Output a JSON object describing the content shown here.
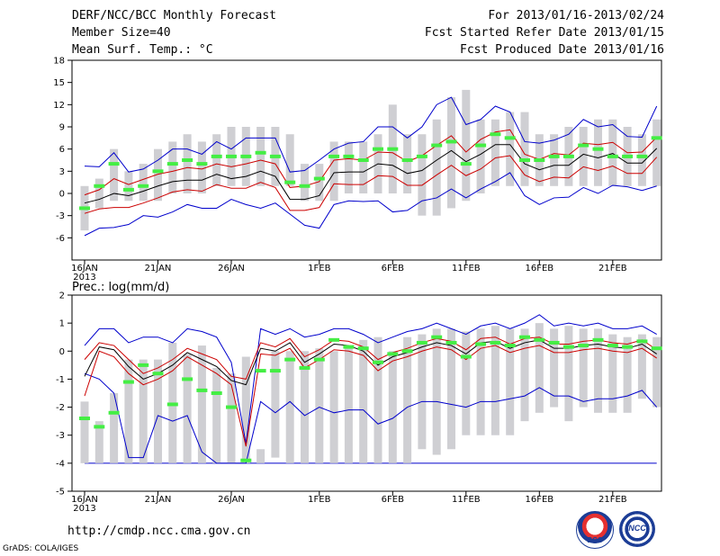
{
  "header": {
    "left": [
      "DERF/NCC/BCC Monthly Forecast",
      "Member Size=40",
      "Mean Surf. Temp.: °C"
    ],
    "right": [
      "For 2013/01/16-2013/02/24",
      "Fcst Started Refer Date 2013/01/15",
      "Fcst Produced Date 2013/01/16"
    ]
  },
  "footer": {
    "url": "http://cmdp.ncc.cma.gov.cn",
    "grads": "GrADS: COLA/IGES",
    "logo_left": "BCC",
    "logo_right": "NCC"
  },
  "colors": {
    "box": "#cfcfd3",
    "median": "#44ee44",
    "mean": "#000000",
    "std": "#cc0000",
    "extreme": "#0000cc"
  },
  "chart_data": [
    {
      "type": "box",
      "title": "Mean Surf. Temp.: °C",
      "ylim": [
        -9,
        18
      ],
      "yticks": [
        -6,
        -3,
        0,
        3,
        6,
        9,
        12,
        15,
        18
      ],
      "xlabels": [
        {
          "i": 0,
          "text": "16JAN"
        },
        {
          "i": 5,
          "text": "21JAN"
        },
        {
          "i": 10,
          "text": "26JAN"
        },
        {
          "i": 16,
          "text": "1FEB"
        },
        {
          "i": 21,
          "text": "6FEB"
        },
        {
          "i": 26,
          "text": "11FEB"
        },
        {
          "i": 31,
          "text": "16FEB"
        },
        {
          "i": 36,
          "text": "21FEB"
        }
      ],
      "year_label": "2013",
      "box_low": [
        -5,
        -2,
        -1,
        -1,
        -1,
        -1,
        0,
        0,
        0,
        1,
        1,
        1,
        1,
        1,
        1,
        -1,
        -1,
        -1,
        0,
        0,
        0,
        0,
        0,
        -3,
        -3,
        -2,
        -1,
        0,
        1,
        1,
        1,
        1,
        1,
        1,
        1,
        1,
        1,
        1,
        1,
        1
      ],
      "box_high": [
        1,
        2,
        6,
        3,
        4,
        6,
        7,
        8,
        7,
        8,
        9,
        9,
        9,
        9,
        8,
        4,
        4,
        7,
        7,
        7,
        8,
        12,
        8,
        8,
        10,
        13,
        14,
        10,
        10,
        11,
        11,
        8,
        8,
        9,
        9,
        10,
        10,
        9,
        8,
        10
      ],
      "median": [
        -2,
        1,
        4,
        0.5,
        1,
        3,
        4,
        4.5,
        4,
        5,
        5,
        5,
        5.5,
        5,
        1.5,
        1,
        2,
        5,
        5,
        4.5,
        6,
        6,
        4.5,
        5,
        6.5,
        7,
        4,
        6.5,
        8,
        7.5,
        4.5,
        4.5,
        5,
        5,
        6.5,
        6,
        5,
        5,
        5,
        7.5
      ],
      "mean": [
        -1.3,
        -0.8,
        0,
        -0.3,
        0.3,
        1,
        1.6,
        1.8,
        1.8,
        2.6,
        2,
        2.3,
        3,
        2.3,
        -0.8,
        -0.8,
        -0.3,
        2.8,
        2.9,
        2.9,
        4,
        3.8,
        2.7,
        3.1,
        4.5,
        5.8,
        4.3,
        5.3,
        6.6,
        6.6,
        4,
        3.2,
        3.8,
        3.8,
        5.3,
        4.8,
        5.4,
        4.1,
        4.1,
        6.1
      ],
      "std_up": [
        -0.2,
        0.5,
        2,
        1.2,
        1.9,
        2.6,
        3,
        3.5,
        3.3,
        4,
        3.6,
        4,
        4.5,
        4,
        0.8,
        1,
        1.6,
        4.5,
        4.7,
        4.5,
        5.6,
        5.5,
        4.3,
        5.1,
        6.5,
        7.8,
        5.6,
        7.3,
        8.3,
        8.6,
        5.3,
        4.6,
        5.4,
        5.2,
        6.8,
        6.6,
        6.9,
        5.5,
        5.6,
        7.6
      ],
      "std_dn": [
        -2.7,
        -2.1,
        -1.9,
        -1.9,
        -1.3,
        -0.6,
        0.2,
        0.5,
        0.3,
        1.2,
        0.7,
        0.7,
        1.5,
        0.8,
        -2.3,
        -2.3,
        -1.9,
        1.3,
        1.2,
        1.2,
        2.4,
        2.3,
        1.1,
        1.1,
        2.5,
        3.8,
        2.4,
        3.3,
        4.8,
        5.1,
        2.5,
        1.6,
        2.2,
        2.1,
        3.6,
        3.1,
        3.7,
        2.7,
        2.7,
        4.9
      ],
      "max": [
        3.7,
        3.6,
        5.5,
        2.9,
        3.3,
        4.5,
        6,
        6,
        5.3,
        7,
        6,
        7.5,
        7.5,
        7.5,
        2.9,
        3.1,
        4.5,
        6,
        6.8,
        7,
        9,
        9,
        7.5,
        9,
        12,
        13,
        9.3,
        10,
        11.8,
        11,
        7,
        6.8,
        7.2,
        8,
        10,
        9,
        9.3,
        7.7,
        7.6,
        11.8
      ],
      "min": [
        -5.7,
        -4.7,
        -4.6,
        -4.2,
        -3,
        -3.2,
        -2.5,
        -1.5,
        -2,
        -2,
        -0.8,
        -1.5,
        -2,
        -1.3,
        -2.8,
        -4.3,
        -4.7,
        -1.5,
        -1,
        -1.1,
        -1,
        -2.5,
        -2.3,
        -1,
        -0.6,
        0.6,
        -0.6,
        0.6,
        1.6,
        2.8,
        -0.3,
        -1.5,
        -0.6,
        -0.5,
        0.8,
        0,
        1.1,
        0.9,
        0.4,
        1
      ]
    },
    {
      "type": "box",
      "title": "Prec.: log(mm/d)",
      "ylim": [
        -5,
        2
      ],
      "yticks": [
        -5,
        -4,
        -3,
        -2,
        -1,
        0,
        1,
        2
      ],
      "xlabels": [
        {
          "i": 0,
          "text": "16JAN"
        },
        {
          "i": 5,
          "text": "21JAN"
        },
        {
          "i": 10,
          "text": "26JAN"
        },
        {
          "i": 16,
          "text": "1FEB"
        },
        {
          "i": 21,
          "text": "6FEB"
        },
        {
          "i": 26,
          "text": "11FEB"
        },
        {
          "i": 31,
          "text": "16FEB"
        },
        {
          "i": 36,
          "text": "21FEB"
        }
      ],
      "year_label": "2013",
      "box_low": [
        -4,
        -4,
        -4,
        -4,
        -4,
        -4,
        -4,
        -4,
        -4,
        -4,
        -4,
        -4,
        -4,
        -3.8,
        -4,
        -4,
        -4,
        -4,
        -4,
        -4,
        -4,
        -4,
        -4,
        -3.5,
        -3.7,
        -3.5,
        -3,
        -3,
        -3,
        -3,
        -2.5,
        -2.2,
        -2,
        -2.5,
        -2,
        -2.2,
        -2.2,
        -2.2,
        -1.7,
        -2
      ],
      "box_high": [
        -1.8,
        -2.5,
        -1.5,
        -0.3,
        -0.3,
        -0.3,
        0.3,
        -0.1,
        0.2,
        -0.6,
        -0.8,
        -0.2,
        -3.5,
        0,
        0,
        0,
        0.1,
        0,
        0.2,
        0.4,
        0.5,
        0,
        0.5,
        0.6,
        0.8,
        0.8,
        0.7,
        0.8,
        0.9,
        0.8,
        0.8,
        1,
        0.8,
        0.9,
        0.8,
        0.8,
        0.6,
        0.5,
        0.6,
        0.5
      ],
      "median": [
        -2.4,
        -2.7,
        -2.2,
        -1.1,
        -0.5,
        -0.8,
        -1.9,
        -1,
        -1.4,
        -1.5,
        -2,
        -3.9,
        -0.7,
        -0.7,
        -0.3,
        -0.6,
        -0.3,
        0.4,
        0.15,
        0.1,
        -0.4,
        -0.1,
        0,
        0.3,
        0.5,
        0.3,
        -0.2,
        0.25,
        0.3,
        0.2,
        0.5,
        0.4,
        0.3,
        0.15,
        0.2,
        0.4,
        0.2,
        0.15,
        0.35,
        0.1
      ],
      "mean": [
        -0.9,
        0.15,
        0.05,
        -0.55,
        -1,
        -0.8,
        -0.5,
        -0.05,
        -0.3,
        -0.55,
        -1.05,
        -1.2,
        0.1,
        0,
        0.3,
        -0.4,
        -0.1,
        0.25,
        0.2,
        0,
        -0.5,
        -0.2,
        -0.05,
        0.15,
        0.3,
        0.2,
        -0.1,
        0.3,
        0.35,
        0.1,
        0.3,
        0.4,
        0.1,
        0.1,
        0.2,
        0.25,
        0.15,
        0.1,
        0.25,
        -0.1
      ],
      "std_up": [
        -0.3,
        0.3,
        0.2,
        -0.3,
        -0.8,
        -0.6,
        -0.3,
        0.1,
        -0.1,
        -0.3,
        -0.9,
        -1.0,
        0.3,
        0.15,
        0.45,
        -0.2,
        0.05,
        0.4,
        0.35,
        0.15,
        -0.3,
        -0.05,
        0.1,
        0.3,
        0.45,
        0.35,
        0.05,
        0.45,
        0.5,
        0.25,
        0.45,
        0.5,
        0.25,
        0.25,
        0.35,
        0.4,
        0.3,
        0.25,
        0.4,
        0.05
      ],
      "std_dn": [
        -1.6,
        0,
        -0.2,
        -0.8,
        -1.2,
        -1,
        -0.7,
        -0.2,
        -0.5,
        -0.8,
        -1.2,
        -3.4,
        -0.1,
        -0.15,
        0.1,
        -0.6,
        -0.3,
        0.05,
        0,
        -0.15,
        -0.7,
        -0.35,
        -0.2,
        0,
        0.15,
        0.05,
        -0.3,
        0.1,
        0.2,
        -0.05,
        0.1,
        0.2,
        -0.05,
        -0.05,
        0.05,
        0.1,
        0,
        -0.05,
        0.1,
        -0.25
      ],
      "max": [
        0.2,
        0.8,
        0.8,
        0.3,
        0.5,
        0.5,
        0.3,
        0.8,
        0.7,
        0.5,
        -0.4,
        -3.3,
        0.8,
        0.6,
        0.8,
        0.5,
        0.6,
        0.8,
        0.8,
        0.6,
        0.3,
        0.5,
        0.7,
        0.8,
        1,
        0.8,
        0.6,
        0.9,
        1,
        0.8,
        1,
        1.3,
        0.9,
        1,
        0.9,
        1,
        0.8,
        0.8,
        0.9,
        0.6
      ],
      "min": [
        -0.8,
        -1,
        -1.5,
        -3.8,
        -3.8,
        -2.3,
        -2.5,
        -2.3,
        -3.6,
        -4,
        -4,
        -4,
        -1.8,
        -2.2,
        -1.8,
        -2.3,
        -2,
        -2.2,
        -2.1,
        -2.1,
        -2.6,
        -2.4,
        -2,
        -1.8,
        -1.8,
        -1.9,
        -2,
        -1.8,
        -1.8,
        -1.7,
        -1.6,
        -1.3,
        -1.6,
        -1.6,
        -1.8,
        -1.7,
        -1.7,
        -1.6,
        -1.4,
        -2
      ]
    }
  ]
}
